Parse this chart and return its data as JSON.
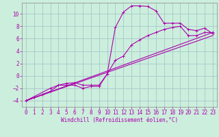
{
  "xlabel": "Windchill (Refroidissement éolien,°C)",
  "bg_color": "#cceedd",
  "grid_color": "#aacccc",
  "line_color": "#aa00aa",
  "spine_color": "#888888",
  "xlim": [
    -0.5,
    23.5
  ],
  "ylim": [
    -5.0,
    11.8
  ],
  "xticks": [
    0,
    1,
    2,
    3,
    4,
    5,
    6,
    7,
    8,
    9,
    10,
    11,
    12,
    13,
    14,
    15,
    16,
    17,
    18,
    19,
    20,
    21,
    22,
    23
  ],
  "yticks": [
    -4,
    -2,
    0,
    2,
    4,
    6,
    8,
    10
  ],
  "curve1_x": [
    0,
    1,
    2,
    3,
    4,
    5,
    6,
    7,
    8,
    9,
    10,
    11,
    12,
    13,
    14,
    15,
    16,
    17,
    18,
    19,
    20,
    21,
    22,
    23
  ],
  "curve1_y": [
    -4.0,
    -3.5,
    -3.0,
    -2.5,
    -1.5,
    -1.5,
    -1.5,
    -2.0,
    -1.7,
    -1.7,
    0.3,
    7.8,
    10.3,
    11.3,
    11.3,
    11.2,
    10.5,
    8.5,
    8.5,
    8.5,
    7.5,
    7.3,
    7.7,
    6.8
  ],
  "curve2_x": [
    0,
    3,
    4,
    5,
    6,
    7,
    8,
    9,
    10,
    11,
    12,
    13,
    14,
    15,
    16,
    17,
    18,
    19,
    20,
    21,
    22,
    23
  ],
  "curve2_y": [
    -4.0,
    -2.0,
    -1.5,
    -1.2,
    -1.1,
    -1.5,
    -1.5,
    -1.5,
    0.3,
    2.5,
    3.2,
    5.0,
    5.8,
    6.5,
    7.0,
    7.5,
    7.8,
    8.0,
    6.5,
    6.5,
    7.0,
    7.0
  ],
  "line1_x": [
    0,
    23
  ],
  "line1_y": [
    -4.0,
    6.5
  ],
  "line2_x": [
    0,
    23
  ],
  "line2_y": [
    -4.0,
    7.0
  ],
  "tick_fontsize": 5.5,
  "xlabel_fontsize": 5.5,
  "lw": 0.8,
  "ms": 2.5,
  "mew": 0.7
}
